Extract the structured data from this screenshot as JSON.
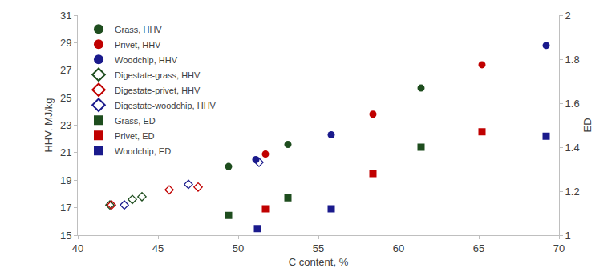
{
  "chart_data": {
    "type": "scatter",
    "x_label": "C content, %",
    "y_label": "HHV, MJ/kg",
    "y2_label": "ED",
    "xlim": [
      40,
      70
    ],
    "xticks": [
      40,
      45,
      50,
      55,
      60,
      65,
      70
    ],
    "ylim": [
      15,
      31
    ],
    "yticks": [
      15,
      17,
      19,
      21,
      23,
      25,
      27,
      29,
      31
    ],
    "y2lim": [
      1,
      2
    ],
    "y2ticks": [
      1,
      1.2,
      1.4,
      1.6,
      1.8,
      2
    ],
    "grid": false,
    "legend": "top-left",
    "series": [
      {
        "name": "Grass, HHV",
        "color": "#1e4d1e",
        "marker": "circle",
        "x": [
          49.4,
          53.1,
          61.4
        ],
        "values": [
          20.0,
          21.6,
          25.7
        ]
      },
      {
        "name": "Privet, HHV",
        "color": "#c00000",
        "marker": "circle",
        "x": [
          51.7,
          58.4,
          65.2
        ],
        "values": [
          20.9,
          23.8,
          27.4
        ]
      },
      {
        "name": "Woodchip, HHV",
        "color": "#1a1a8c",
        "marker": "circle",
        "x": [
          51.1,
          55.8,
          69.2
        ],
        "values": [
          20.5,
          22.3,
          28.8
        ]
      },
      {
        "name": "Digestate-grass, HHV",
        "color": "#1e4d1e",
        "marker": "diamond-open",
        "x": [
          42.0,
          43.4,
          44.0
        ],
        "values": [
          17.2,
          17.6,
          17.8
        ]
      },
      {
        "name": "Digestate-privet, HHV",
        "color": "#c00000",
        "marker": "diamond-open",
        "x": [
          42.1,
          45.7,
          47.5
        ],
        "values": [
          17.2,
          18.3,
          18.5
        ]
      },
      {
        "name": "Digestate-woodchip, HHV",
        "color": "#1a1a8c",
        "marker": "diamond-open",
        "x": [
          42.9,
          46.9,
          51.3
        ],
        "values": [
          17.2,
          18.7,
          20.3
        ]
      },
      {
        "name": "Grass, ED",
        "color": "#1e4d1e",
        "marker": "square",
        "axis": "y2",
        "x": [
          49.4,
          53.1,
          61.4
        ],
        "values": [
          1.09,
          1.17,
          1.4
        ]
      },
      {
        "name": "Privet, ED",
        "color": "#c00000",
        "marker": "square",
        "axis": "y2",
        "x": [
          51.7,
          58.4,
          65.2
        ],
        "values": [
          1.12,
          1.28,
          1.47
        ]
      },
      {
        "name": "Woodchip, ED",
        "color": "#1a1a8c",
        "marker": "square",
        "axis": "y2",
        "x": [
          51.2,
          55.8,
          69.2
        ],
        "values": [
          1.03,
          1.12,
          1.45
        ]
      }
    ]
  }
}
